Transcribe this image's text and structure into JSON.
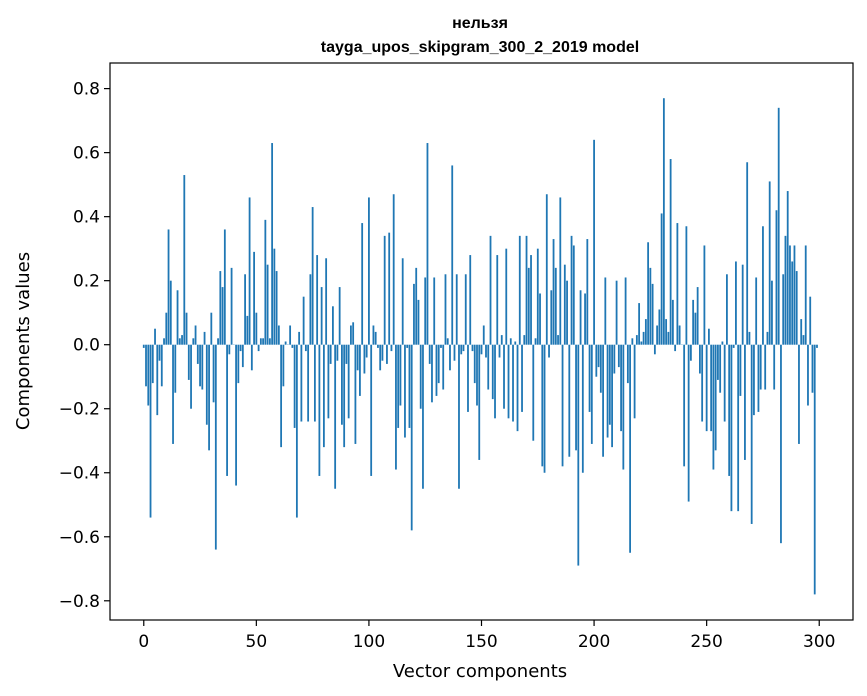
{
  "chart_data": {
    "type": "bar",
    "title_line1": "нельзя",
    "title_line2": "tayga_upos_skipgram_300_2_2019 model",
    "xlabel": "Vector components",
    "ylabel": "Components values",
    "xlim": [
      -15,
      315
    ],
    "ylim": [
      -0.86,
      0.88
    ],
    "xticks": [
      0,
      50,
      100,
      150,
      200,
      250,
      300
    ],
    "yticks": [
      -0.8,
      -0.6,
      -0.4,
      -0.2,
      0.0,
      0.2,
      0.4,
      0.6,
      0.8
    ],
    "xtick_labels": [
      "0",
      "50",
      "100",
      "150",
      "200",
      "250",
      "300"
    ],
    "ytick_labels": [
      "−0.8",
      "−0.6",
      "−0.4",
      "−0.2",
      "0.0",
      "0.2",
      "0.4",
      "0.6",
      "0.8"
    ],
    "bar_color": "#1f77b4",
    "values": [
      -0.01,
      -0.13,
      -0.19,
      -0.54,
      -0.12,
      0.05,
      -0.22,
      -0.05,
      -0.13,
      0.02,
      0.1,
      0.36,
      0.2,
      -0.31,
      -0.15,
      0.17,
      0.02,
      0.03,
      0.53,
      0.1,
      -0.11,
      -0.2,
      0.02,
      0.06,
      -0.06,
      -0.13,
      -0.14,
      0.04,
      -0.25,
      -0.33,
      0.1,
      -0.18,
      -0.64,
      0.02,
      0.23,
      0.18,
      0.36,
      -0.41,
      -0.03,
      0.24,
      0.0,
      -0.44,
      -0.12,
      -0.02,
      -0.07,
      0.22,
      0.09,
      0.46,
      -0.08,
      0.29,
      0.1,
      -0.02,
      0.02,
      0.02,
      0.39,
      0.25,
      0.02,
      0.63,
      0.3,
      0.23,
      0.06,
      -0.32,
      -0.13,
      0.01,
      0.0,
      0.06,
      -0.01,
      -0.26,
      -0.54,
      0.04,
      -0.24,
      0.15,
      -0.02,
      -0.24,
      0.22,
      0.43,
      -0.24,
      0.28,
      -0.41,
      0.18,
      -0.32,
      0.27,
      -0.23,
      -0.06,
      0.12,
      -0.45,
      -0.05,
      0.18,
      -0.25,
      -0.32,
      -0.06,
      -0.23,
      0.06,
      0.07,
      -0.31,
      -0.08,
      -0.16,
      0.38,
      -0.09,
      -0.04,
      0.46,
      -0.41,
      0.06,
      0.04,
      -0.01,
      -0.08,
      -0.05,
      0.34,
      -0.06,
      0.35,
      -0.02,
      0.47,
      -0.39,
      -0.26,
      -0.19,
      0.27,
      -0.29,
      -0.01,
      -0.26,
      -0.58,
      0.19,
      0.24,
      0.14,
      -0.2,
      -0.45,
      0.21,
      0.63,
      -0.06,
      -0.18,
      0.21,
      -0.16,
      -0.12,
      -0.01,
      -0.14,
      0.22,
      0.02,
      -0.08,
      0.56,
      -0.05,
      0.22,
      -0.45,
      -0.03,
      -0.02,
      0.22,
      -0.21,
      0.28,
      -0.02,
      -0.12,
      -0.19,
      -0.36,
      -0.03,
      0.06,
      -0.04,
      -0.14,
      0.34,
      -0.17,
      -0.23,
      0.28,
      -0.04,
      0.03,
      -0.2,
      0.3,
      -0.23,
      0.02,
      -0.24,
      0.01,
      -0.27,
      0.34,
      -0.21,
      0.03,
      0.34,
      0.24,
      0.28,
      -0.3,
      0.02,
      0.3,
      0.16,
      -0.38,
      -0.4,
      0.47,
      -0.04,
      0.17,
      0.33,
      0.24,
      0.03,
      0.46,
      -0.38,
      0.25,
      0.2,
      -0.35,
      0.34,
      0.31,
      -0.33,
      -0.69,
      0.17,
      -0.4,
      0.16,
      0.33,
      -0.21,
      -0.31,
      0.64,
      -0.1,
      -0.07,
      -0.15,
      -0.35,
      0.21,
      -0.29,
      -0.25,
      -0.32,
      -0.09,
      0.2,
      -0.07,
      -0.27,
      -0.39,
      0.21,
      -0.12,
      -0.65,
      0.02,
      -0.23,
      0.03,
      0.13,
      0.01,
      0.04,
      0.08,
      0.32,
      0.24,
      0.19,
      -0.03,
      0.06,
      0.11,
      0.41,
      0.77,
      0.08,
      0.04,
      0.58,
      0.14,
      -0.02,
      0.38,
      0.06,
      0.0,
      -0.38,
      0.37,
      -0.49,
      -0.05,
      0.14,
      0.1,
      0.18,
      -0.09,
      -0.24,
      0.31,
      -0.27,
      0.05,
      -0.27,
      -0.39,
      -0.33,
      -0.11,
      -0.15,
      0.01,
      -0.24,
      0.22,
      -0.41,
      -0.52,
      -0.01,
      0.26,
      -0.52,
      -0.16,
      0.25,
      -0.36,
      0.57,
      0.04,
      -0.56,
      -0.22,
      0.21,
      -0.21,
      -0.14,
      0.37,
      -0.14,
      0.04,
      0.51,
      0.2,
      -0.14,
      0.42,
      0.74,
      -0.62,
      0.22,
      0.34,
      0.48,
      0.31,
      0.26,
      0.31,
      0.23,
      -0.31,
      0.08,
      0.03,
      0.31,
      -0.19,
      0.15,
      -0.15,
      -0.78,
      -0.01
    ]
  }
}
